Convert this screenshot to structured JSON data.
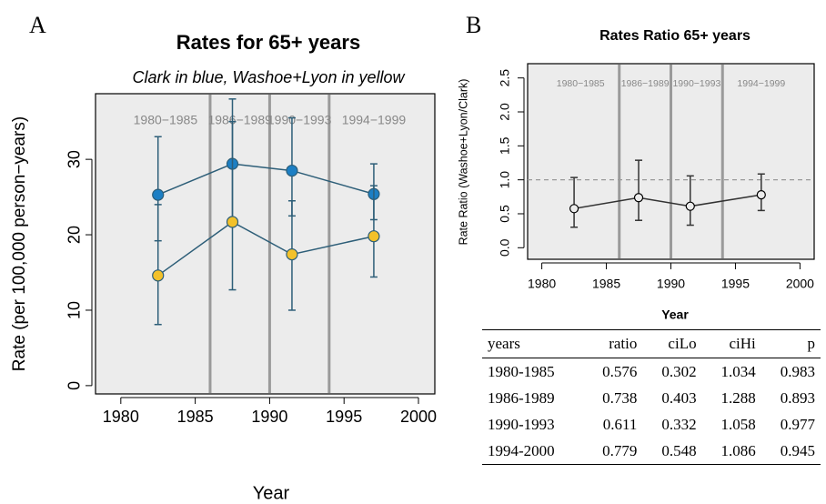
{
  "chart_data": [
    {
      "type": "line",
      "panel": "A",
      "title": "Rates for 65+ years",
      "subtitle": "Clark in blue, Washoe+Lyon in yellow",
      "x_label": "Year",
      "y_label": "Rate (per 100,000 person−years)",
      "x": [
        1982.5,
        1987.5,
        1991.5,
        1997
      ],
      "series": [
        {
          "color": "#1c7fc4",
          "values": [
            25.3,
            29.4,
            28.5,
            25.4
          ],
          "lower": [
            19.2,
            22,
            22.5,
            22
          ],
          "upper": [
            33,
            38,
            35.5,
            29.4
          ]
        },
        {
          "color": "#f3c12a",
          "values": [
            14.6,
            21.7,
            17.4,
            19.8
          ],
          "lower": [
            8.1,
            12.7,
            10,
            14.4
          ],
          "upper": [
            24,
            35,
            24.5,
            26.5
          ]
        }
      ],
      "line_color": "#2d5e78",
      "marker": "filled",
      "xlim": [
        1978.3,
        2001.1
      ],
      "xticks": [
        1980,
        1985,
        1990,
        1995,
        2000
      ],
      "ylim": [
        -1.1,
        38.7
      ],
      "yticks": [
        0,
        10,
        20,
        30
      ],
      "period_bounds": [
        1980,
        1986,
        1990,
        1994,
        2000
      ],
      "period_labels": [
        "1980−1985",
        "1986−1989",
        "1990−1993",
        "1994−1999"
      ]
    },
    {
      "type": "line",
      "panel": "B",
      "title": "Rates Ratio 65+ years",
      "x_label": "Year",
      "y_label": "Rate Ratio (Washoe+Lyon/Clark)",
      "x": [
        1982.5,
        1987.5,
        1991.5,
        1997
      ],
      "series": [
        {
          "color": "#000000",
          "values": [
            0.576,
            0.738,
            0.611,
            0.779
          ],
          "lower": [
            0.302,
            0.403,
            0.332,
            0.548
          ],
          "upper": [
            1.034,
            1.288,
            1.058,
            1.086
          ]
        }
      ],
      "line_color": "#333333",
      "marker": "open",
      "xlim": [
        1978.9,
        2001.1
      ],
      "xticks": [
        1980,
        1985,
        1990,
        1995,
        2000
      ],
      "ylim": [
        -0.17,
        2.71
      ],
      "yticks": [
        {
          "value": 0,
          "label": "0.0"
        },
        0.5,
        {
          "value": 1,
          "label": "1.0"
        },
        1.5,
        {
          "value": 2,
          "label": "2.0"
        },
        2.5
      ],
      "reference_line": 1,
      "period_bounds": [
        1980,
        1986,
        1990,
        1994,
        2000
      ],
      "period_labels": [
        "1980−1985",
        "1986−1989",
        "1990−1993",
        "1994−1999"
      ]
    }
  ],
  "table": {
    "header": [
      "years",
      "ratio",
      "ciLo",
      "ciHi",
      "p"
    ],
    "rows": [
      [
        "1980-1985",
        0.576,
        0.302,
        1.034,
        0.983
      ],
      [
        "1986-1989",
        0.738,
        0.403,
        1.288,
        0.893
      ],
      [
        "1990-1993",
        0.611,
        0.332,
        1.058,
        0.977
      ],
      [
        "1994-2000",
        0.779,
        0.548,
        1.086,
        0.945
      ]
    ]
  }
}
